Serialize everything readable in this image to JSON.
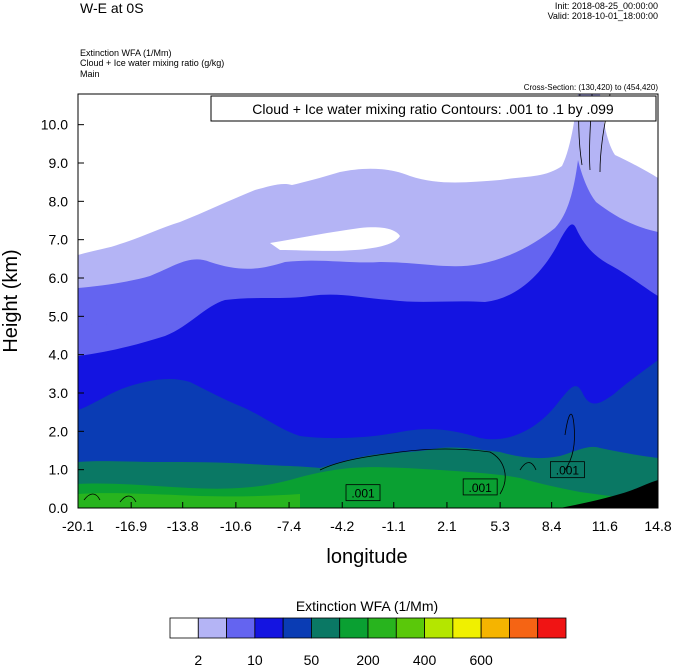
{
  "header": {
    "title": "W-E at 0S",
    "init": "Init: 2018-08-25_00:00:00",
    "valid": "Valid: 2018-10-01_18:00:00",
    "fields": [
      "Extinction WFA   (1/Mm)",
      "Cloud + Ice water mixing ratio   (g/kg)",
      "Main"
    ],
    "cross_section": "Cross-Section: (130,420) to (454,420)"
  },
  "chart_data": {
    "type": "heatmap",
    "contour_label": "Cloud + Ice water mixing ratio Contours: .001 to .1 by .099",
    "xlabel": "longitude",
    "ylabel": "Height (km)",
    "xlim": [
      -20.1,
      14.8
    ],
    "ylim": [
      0,
      10.8
    ],
    "x_ticks": [
      "-20.1",
      "-16.9",
      "-13.8",
      "-10.6",
      "-7.4",
      "-4.2",
      "-1.1",
      "2.1",
      "5.3",
      "8.4",
      "11.6",
      "14.8"
    ],
    "y_ticks": [
      "0.0",
      "1.0",
      "2.0",
      "3.0",
      "4.0",
      "5.0",
      "6.0",
      "7.0",
      "8.0",
      "9.0",
      "10.0"
    ],
    "contour_labels": [
      ".001",
      ".001",
      ".001"
    ],
    "colorbar": {
      "title": "Extinction WFA  (1/Mm)",
      "tick_labels": [
        "2",
        "10",
        "50",
        "200",
        "400",
        "600"
      ],
      "colors": [
        "#ffffff",
        "#b4b4f5",
        "#6464f0",
        "#1414e1",
        "#0a3cb4",
        "#0a7864",
        "#0aa032",
        "#28b41e",
        "#5ac80a",
        "#b4e600",
        "#f0f000",
        "#f5b400",
        "#f56414",
        "#f01414"
      ]
    },
    "extinction_level_colors": {
      "light": "#b4b4f5",
      "medium": "#6464f0",
      "blue": "#1414e1",
      "navy": "#0a3cb4",
      "teal": "#0a7864",
      "green": "#0aa032",
      "lightgreen": "#28b41e",
      "terrain": "#000000"
    }
  }
}
